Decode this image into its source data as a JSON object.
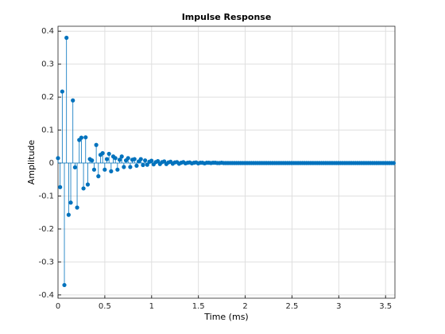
{
  "chart_data": {
    "type": "stem",
    "title": "Impulse Response",
    "xlabel": "Time (ms)",
    "ylabel": "Amplitude",
    "grid": true,
    "color": "#0072bd",
    "xlim": [
      0,
      3.6
    ],
    "ylim": [
      -0.41,
      0.415
    ],
    "xticks": [
      0,
      0.5,
      1,
      1.5,
      2,
      2.5,
      3,
      3.5
    ],
    "yticks": [
      -0.4,
      -0.3,
      -0.2,
      -0.1,
      0,
      0.1,
      0.2,
      0.3,
      0.4
    ],
    "x": [
      0,
      0.0227,
      0.0454,
      0.0681,
      0.0908,
      0.1135,
      0.1362,
      0.1589,
      0.1816,
      0.2043,
      0.227,
      0.2497,
      0.2724,
      0.2951,
      0.3178,
      0.3405,
      0.3632,
      0.3859,
      0.4086,
      0.4313,
      0.454,
      0.4767,
      0.4994,
      0.5221,
      0.5448,
      0.5675,
      0.5902,
      0.6129,
      0.6356,
      0.6583,
      0.681,
      0.7037,
      0.7264,
      0.7491,
      0.7718,
      0.7945,
      0.8172,
      0.8399,
      0.8626,
      0.8853,
      0.908,
      0.9307,
      0.9534,
      0.9761,
      0.9988,
      1.0215,
      1.0442,
      1.0669,
      1.0896,
      1.1123,
      1.135,
      1.1577,
      1.1804,
      1.2031,
      1.2258,
      1.2485,
      1.2712,
      1.2939,
      1.3166,
      1.3393,
      1.362,
      1.3847,
      1.4074,
      1.4301,
      1.4528,
      1.4755,
      1.4982,
      1.5209,
      1.5436,
      1.5663,
      1.589,
      1.6117,
      1.6344,
      1.6571,
      1.6798,
      1.7025,
      1.7252,
      1.7479,
      1.7706,
      1.7933,
      1.816,
      1.8387,
      1.8614,
      1.8841,
      1.9068,
      1.9295,
      1.9522,
      1.9749,
      1.9976,
      2.0203,
      2.043,
      2.0657,
      2.0884,
      2.1111,
      2.1338,
      2.1565,
      2.1792,
      2.2019,
      2.2246,
      2.2473,
      2.27,
      2.2927,
      2.3154,
      2.3381,
      2.3608,
      2.3835,
      2.4062,
      2.4289,
      2.4516,
      2.4743,
      2.497,
      2.5197,
      2.5424,
      2.5651,
      2.5878,
      2.6105,
      2.6332,
      2.6559,
      2.6786,
      2.7013,
      2.724,
      2.7467,
      2.7694,
      2.7921,
      2.8148,
      2.8375,
      2.8602,
      2.8829,
      2.9056,
      2.9283,
      2.951,
      2.9737,
      2.9964,
      3.0191,
      3.0418,
      3.0645,
      3.0872,
      3.1099,
      3.1326,
      3.1553,
      3.178,
      3.2007,
      3.2234,
      3.2461,
      3.2688,
      3.2915,
      3.3142,
      3.3369,
      3.3596,
      3.3823,
      3.405,
      3.4277,
      3.4504,
      3.4731,
      3.4958,
      3.5185,
      3.5412,
      3.5639,
      3.5866
    ],
    "values": [
      0.015,
      -0.073,
      0.217,
      -0.37,
      0.38,
      -0.157,
      -0.12,
      0.19,
      -0.013,
      -0.135,
      0.07,
      0.077,
      -0.077,
      0.078,
      -0.065,
      0.012,
      0.008,
      -0.02,
      0.055,
      -0.04,
      0.025,
      0.03,
      -0.02,
      0.012,
      0.028,
      -0.025,
      0.02,
      0.015,
      -0.02,
      0.01,
      0.02,
      -0.012,
      0.008,
      0.015,
      -0.012,
      0.01,
      0.012,
      -0.008,
      0.005,
      0.012,
      -0.006,
      0.008,
      -0.005,
      0.004,
      0.007,
      -0.004,
      0.003,
      0.006,
      -0.003,
      0.003,
      0.005,
      -0.003,
      0.002,
      0.004,
      -0.002,
      0.002,
      0.003,
      -0.002,
      0.001,
      0.003,
      -0.001,
      0.001,
      0.002,
      -0.001,
      0.001,
      0.002,
      -0.001,
      0.001,
      0.001,
      -0.001,
      0.001,
      0.001,
      0,
      0.001,
      0.001,
      0,
      0,
      0.001,
      0,
      0,
      0,
      0,
      0,
      0,
      0,
      0,
      0,
      0,
      0,
      0,
      0,
      0,
      0,
      0,
      0,
      0,
      0,
      0,
      0,
      0,
      0,
      0,
      0,
      0,
      0,
      0,
      0,
      0,
      0,
      0,
      0,
      0,
      0,
      0,
      0,
      0,
      0,
      0,
      0,
      0,
      0,
      0,
      0,
      0,
      0,
      0,
      0,
      0,
      0,
      0,
      0,
      0,
      0,
      0,
      0,
      0,
      0,
      0,
      0,
      0,
      0,
      0,
      0,
      0,
      0,
      0,
      0,
      0,
      0,
      0,
      0,
      0,
      0,
      0,
      0,
      0,
      0,
      0,
      0
    ]
  }
}
